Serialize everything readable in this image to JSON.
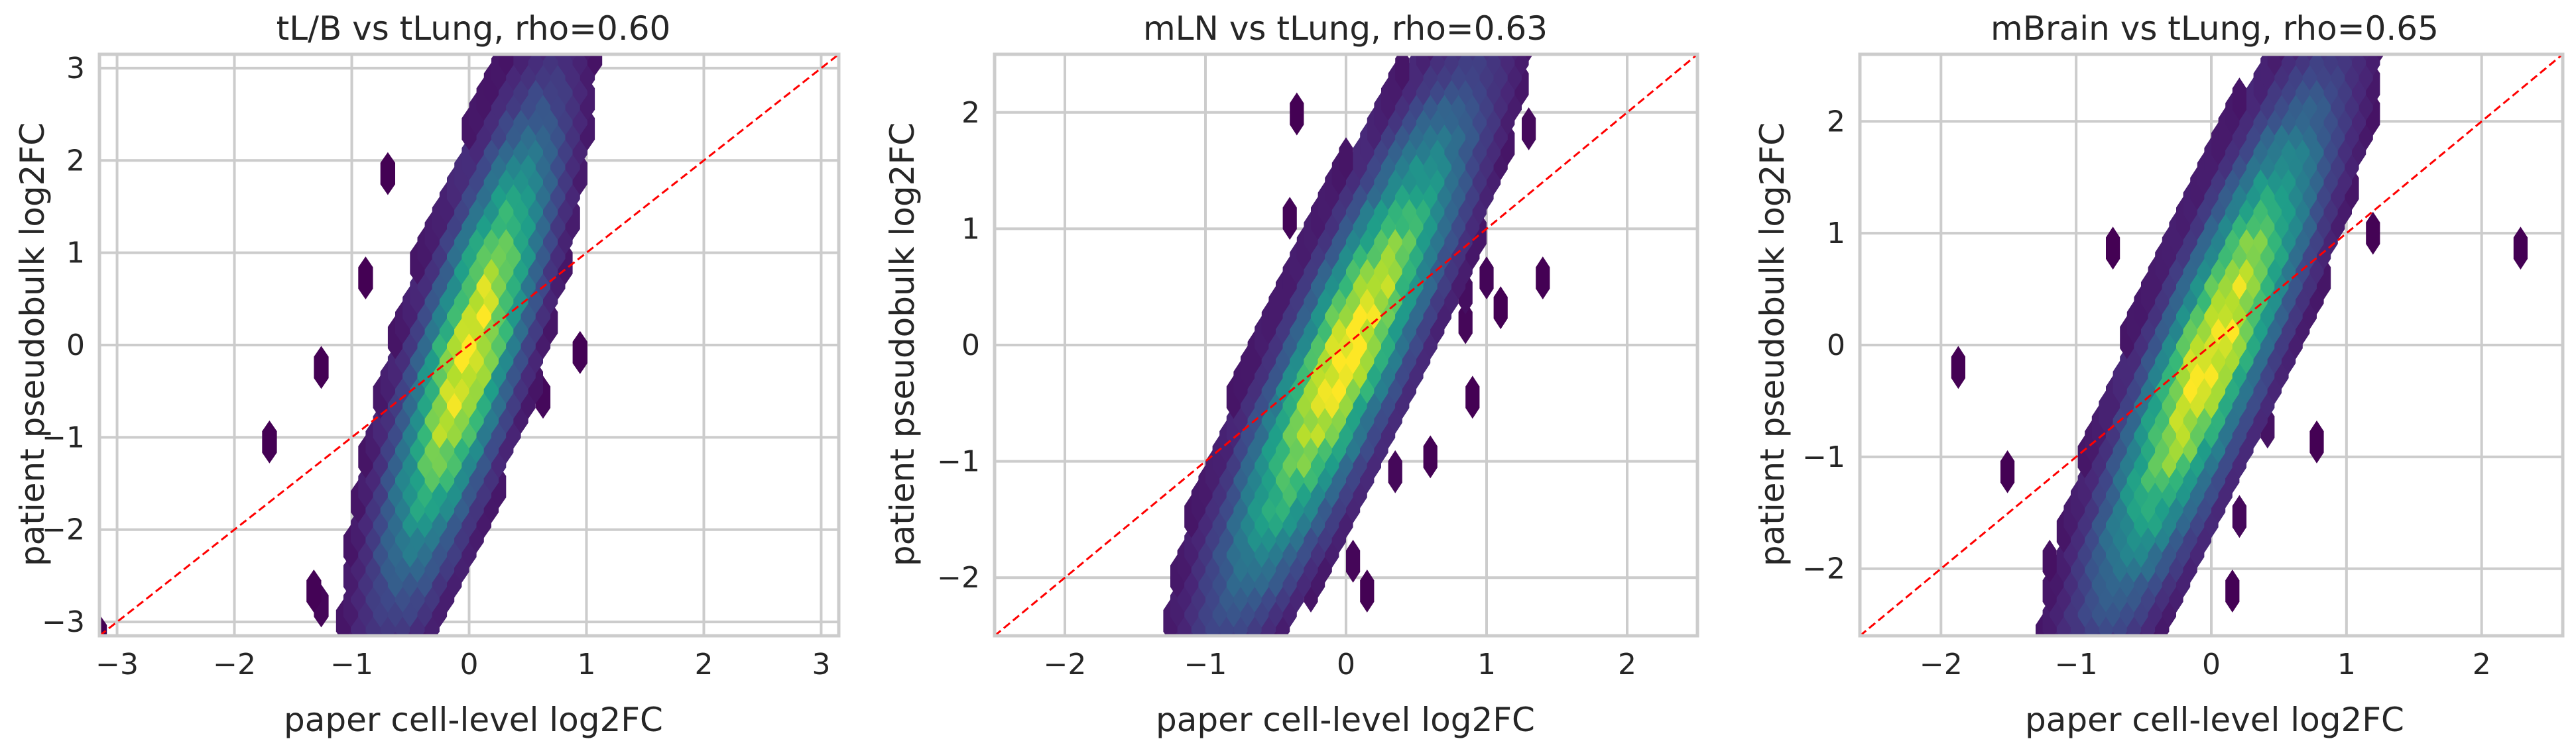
{
  "chart_data": [
    {
      "type": "hexbin",
      "title": "tL/B vs tLung, rho=0.60",
      "xlabel": "paper cell-level log2FC",
      "ylabel": "patient pseudobulk log2FC",
      "xlim": [
        -3.15,
        3.15
      ],
      "ylim": [
        -3.15,
        3.15
      ],
      "xticks": [
        -3,
        -2,
        -1,
        0,
        1,
        2,
        3
      ],
      "yticks": [
        -3,
        -2,
        -1,
        0,
        1,
        2,
        3
      ],
      "rho": 0.6,
      "reference_line": "y = x",
      "density_model": {
        "x_center": 0.0,
        "slope": 0.22,
        "x_spread": 0.22,
        "y_spread": 1.3
      }
    },
    {
      "type": "hexbin",
      "title": "mLN vs tLung, rho=0.63",
      "xlabel": "paper cell-level log2FC",
      "ylabel": "patient pseudobulk log2FC",
      "xlim": [
        -2.5,
        2.5
      ],
      "ylim": [
        -2.5,
        2.5
      ],
      "xticks": [
        -2,
        -1,
        0,
        1,
        2
      ],
      "yticks": [
        -2,
        -1,
        0,
        1,
        2
      ],
      "rho": 0.63,
      "reference_line": "y = x",
      "density_model": {
        "x_center": 0.0,
        "slope": 0.35,
        "x_spread": 0.22,
        "y_spread": 1.1
      }
    },
    {
      "type": "hexbin",
      "title": "mBrain vs tLung, rho=0.65",
      "xlabel": "paper cell-level log2FC",
      "ylabel": "patient pseudobulk log2FC",
      "xlim": [
        -2.6,
        2.6
      ],
      "ylim": [
        -2.6,
        2.6
      ],
      "xticks": [
        -2,
        -1,
        0,
        1,
        2
      ],
      "yticks": [
        -2,
        -1,
        0,
        1,
        2
      ],
      "rho": 0.65,
      "reference_line": "y = x",
      "density_model": {
        "x_center": 0.0,
        "slope": 0.32,
        "x_spread": 0.22,
        "y_spread": 1.15
      }
    }
  ],
  "colors": {
    "colormap": "viridis",
    "reference_line": "#ff0000",
    "grid": "#cccccc",
    "spine": "#cccccc",
    "text": "#262626"
  }
}
